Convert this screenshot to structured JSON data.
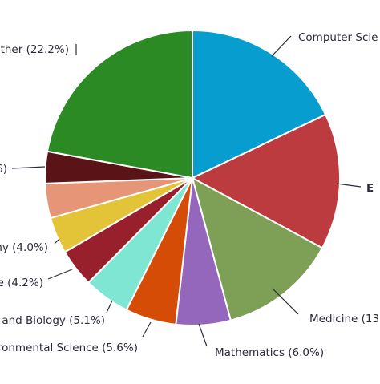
{
  "chart_data": {
    "type": "pie",
    "slices": [
      {
        "label": "Computer Scie",
        "percent_text": "",
        "value": 18.0,
        "color": "#079ecf"
      },
      {
        "label": "E",
        "percent_text": "",
        "value": 15.0,
        "color": "#bb3b3e"
      },
      {
        "label": "Medicine (13",
        "percent_text": "",
        "value": 13.0,
        "color": "#7ea056"
      },
      {
        "label": "Mathematics (6.0%)",
        "percent_text": "6.0%",
        "value": 6.0,
        "color": "#9467bd"
      },
      {
        "label": "nvironmental Science (5.6%)",
        "percent_text": "5.6%",
        "value": 5.6,
        "color": "#d54c07"
      },
      {
        "label": "try and Biology (5.1%)",
        "percent_text": "5.1%",
        "value": 5.1,
        "color": "#80e6d4"
      },
      {
        "label": "e (4.2%)",
        "percent_text": "4.2%",
        "value": 4.2,
        "color": "#98202c"
      },
      {
        "label": "my (4.0%)",
        "percent_text": "4.0%",
        "value": 4.0,
        "color": "#e3c338"
      },
      {
        "label": "",
        "percent_text": "",
        "value": 3.8,
        "color": "#e69676"
      },
      {
        "label": "6)",
        "percent_text": "",
        "value": 3.5,
        "color": "#5a1418"
      },
      {
        "label": "ther (22.2%)",
        "percent_text": "22.2%",
        "value": 22.2,
        "color": "#2b8a23"
      }
    ]
  }
}
